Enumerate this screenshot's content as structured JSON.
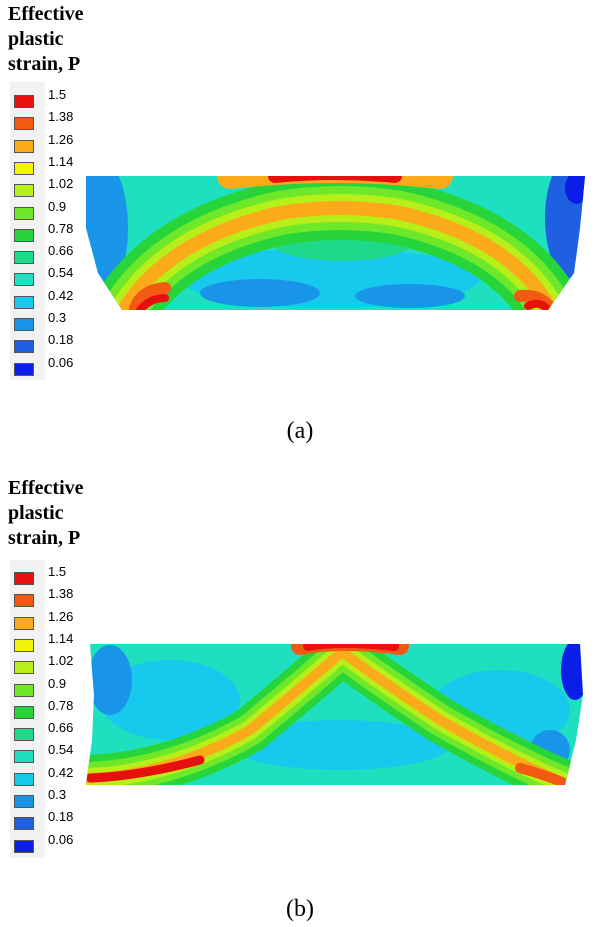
{
  "legend": {
    "title_lines": [
      "Effective",
      "plastic",
      "strain, P"
    ],
    "levels": [
      {
        "label": "1.5",
        "color": "#e8100f"
      },
      {
        "label": "1.38",
        "color": "#f25a12"
      },
      {
        "label": "1.26",
        "color": "#fbab1a"
      },
      {
        "label": "1.14",
        "color": "#f2f20a"
      },
      {
        "label": "1.02",
        "color": "#b7ef19"
      },
      {
        "label": "0.9",
        "color": "#6fe82a"
      },
      {
        "label": "0.78",
        "color": "#27d53a"
      },
      {
        "label": "0.66",
        "color": "#1ed98a"
      },
      {
        "label": "0.54",
        "color": "#1ee0c0"
      },
      {
        "label": "0.42",
        "color": "#18c9ee"
      },
      {
        "label": "0.3",
        "color": "#1895e8"
      },
      {
        "label": "0.18",
        "color": "#1e60e0"
      },
      {
        "label": "0.06",
        "color": "#0a1ee8"
      }
    ]
  },
  "panels": [
    {
      "caption": "(a)",
      "pattern": "arch"
    },
    {
      "caption": "(b)",
      "pattern": "band"
    }
  ]
}
